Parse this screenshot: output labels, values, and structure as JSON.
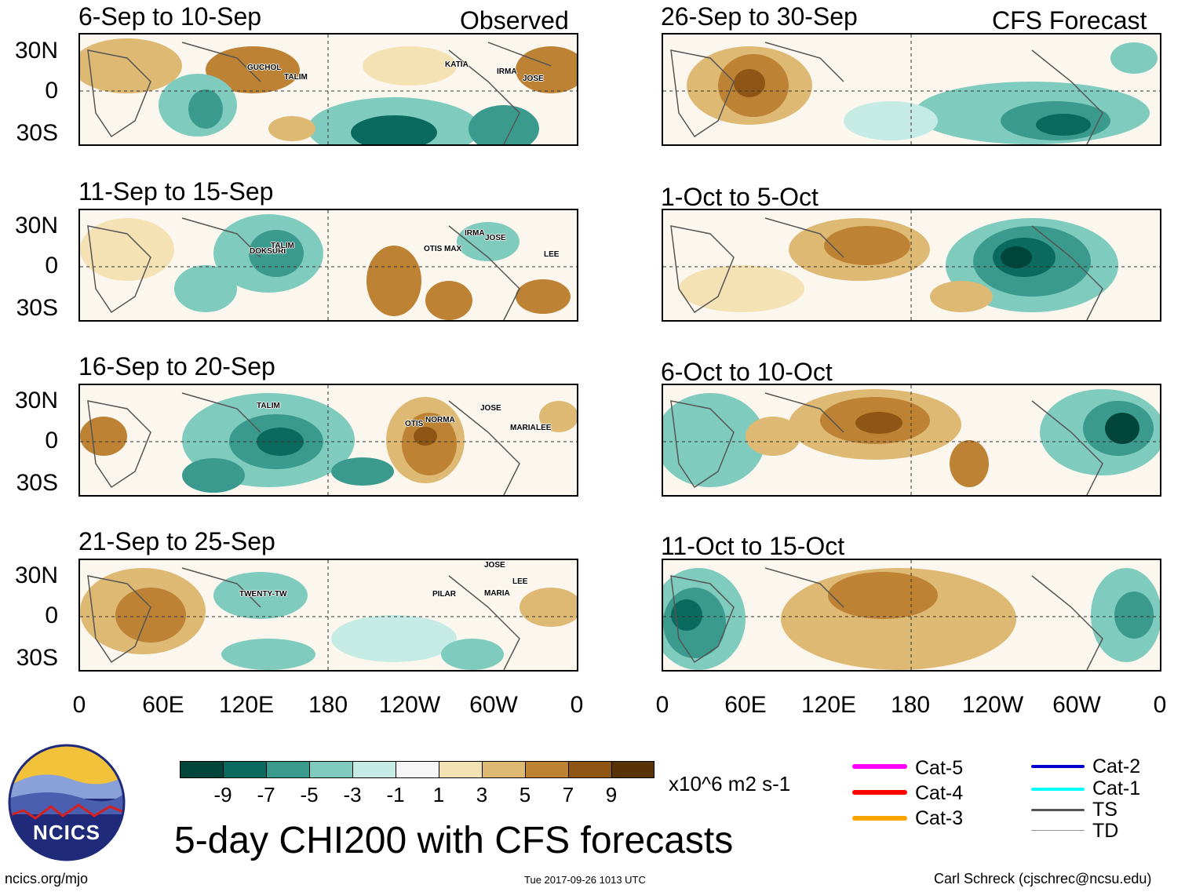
{
  "observed_header": "Observed",
  "forecast_header": "CFS Forecast",
  "y_labels": [
    "30N",
    "0",
    "30S"
  ],
  "x_labels": [
    "0",
    "60E",
    "120E",
    "180",
    "120W",
    "60W",
    "0"
  ],
  "observed_panels": [
    {
      "title": "6-Sep to 10-Sep",
      "storms": [
        "GUCHOL",
        "TALIM",
        "KATIA",
        "IRMA",
        "JOSE"
      ]
    },
    {
      "title": "11-Sep to 15-Sep",
      "storms": [
        "DOKSURI",
        "TALIM",
        "OTIS",
        "MAX",
        "IRMA",
        "JOSE",
        "LEE"
      ]
    },
    {
      "title": "16-Sep to 20-Sep",
      "storms": [
        "TALIM",
        "OTIS",
        "NORMA",
        "JOSE",
        "MARIA",
        "LEE"
      ]
    },
    {
      "title": "21-Sep to 25-Sep",
      "storms": [
        "TWENTY-TW",
        "PILAR",
        "JOSE",
        "LEE",
        "MARIA"
      ]
    }
  ],
  "forecast_panels": [
    {
      "title": "26-Sep to 30-Sep"
    },
    {
      "title": "1-Oct to 5-Oct"
    },
    {
      "title": "6-Oct to 10-Oct"
    },
    {
      "title": "11-Oct to 15-Oct"
    }
  ],
  "colorbar": {
    "colors": [
      "#01443a",
      "#0b6a5f",
      "#3a9a8d",
      "#7fcbbe",
      "#c6ebe4",
      "#f6f6f6",
      "#f4e2b5",
      "#deb973",
      "#bd8233",
      "#8e5514",
      "#573307"
    ],
    "labels": [
      "-9",
      "-7",
      "-5",
      "-3",
      "-1",
      "1",
      "3",
      "5",
      "7",
      "9"
    ],
    "units": "x10^6 m2 s-1"
  },
  "legend": {
    "left": [
      {
        "label": "Cat-5",
        "color": "#ff00ff"
      },
      {
        "label": "Cat-4",
        "color": "#ff0000"
      },
      {
        "label": "Cat-3",
        "color": "#ffa500"
      }
    ],
    "right": [
      {
        "label": "Cat-2",
        "color": "#0000cd"
      },
      {
        "label": "Cat-1",
        "color": "#00ffff"
      },
      {
        "label": "TS",
        "color": "#555555"
      },
      {
        "label": "TD",
        "color": "#999999"
      }
    ]
  },
  "logo_text": "NCICS",
  "main_title": "5-day CHI200 with CFS forecasts",
  "footer": {
    "left": "ncics.org/mjo",
    "center": "Tue 2017-09-26 1013 UTC",
    "right": "Carl Schreck (cjschrec@ncsu.edu)"
  }
}
